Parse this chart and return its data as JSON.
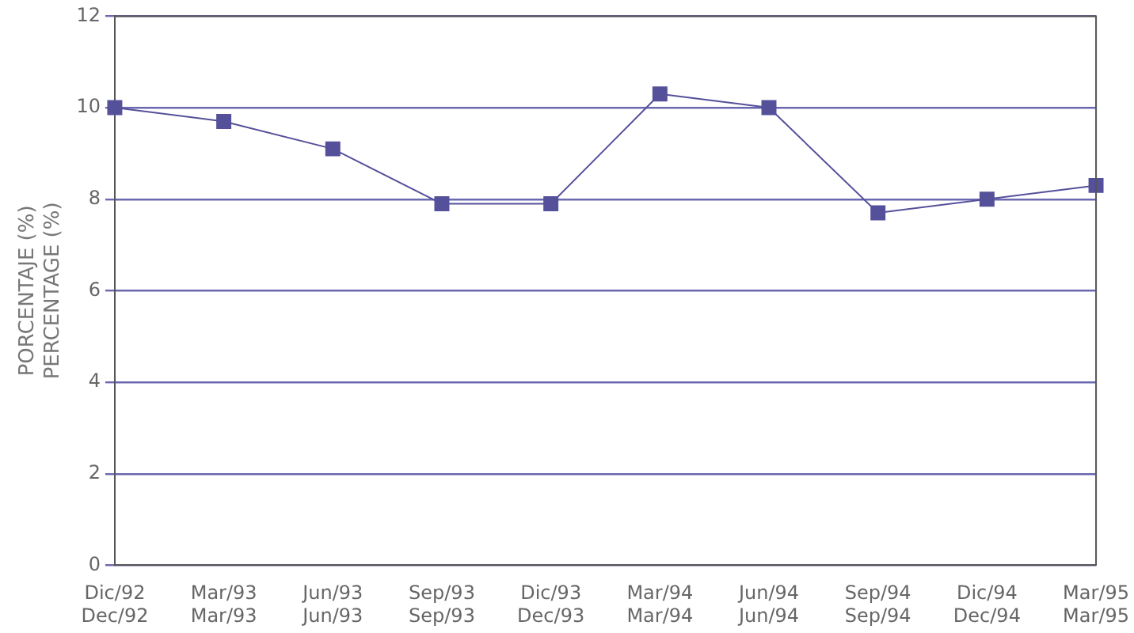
{
  "chart_data": {
    "type": "line",
    "ylabel": "PORCENTAJE (%)\nPERCENTAGE (%)",
    "categories": [
      "Dic/92\nDec/92",
      "Mar/93\nMar/93",
      "Jun/93\nJun/93",
      "Sep/93\nSep/93",
      "Dic/93\nDec/93",
      "Mar/94\nMar/94",
      "Jun/94\nJun/94",
      "Sep/94\nSep/94",
      "Dic/94\nDec/94",
      "Mar/95\nMar/95"
    ],
    "series": [
      {
        "color": "#55509a",
        "values": [
          10.0,
          9.7,
          9.1,
          7.9,
          7.9,
          10.3,
          10.0,
          7.7,
          8.0,
          8.3
        ]
      }
    ],
    "ylim": [
      0,
      12
    ],
    "yticks": [
      0,
      2,
      4,
      6,
      8,
      10,
      12
    ],
    "grid": "y",
    "marker": "square",
    "line_style": "solid",
    "legend": false
  }
}
